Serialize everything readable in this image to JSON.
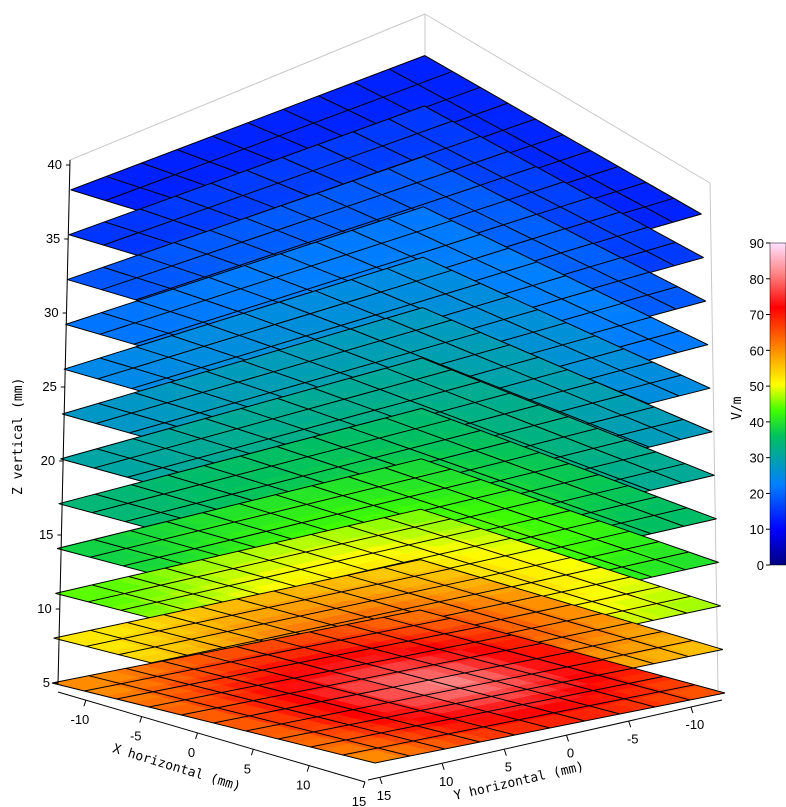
{
  "chart_data": {
    "type": "surface-slices-3d",
    "z_axis": {
      "label": "Z vertical (mm)",
      "range": [
        5,
        40
      ],
      "ticks": [
        5,
        10,
        15,
        20,
        25,
        30,
        35,
        40
      ]
    },
    "x_axis": {
      "label": "X horizontal (mm)",
      "ticks": [
        -10,
        -5,
        0,
        5,
        10,
        15
      ]
    },
    "y_axis": {
      "label": "Y horizontal (mm)",
      "ticks": [
        15,
        10,
        5,
        0,
        -5,
        -10
      ]
    },
    "colorbar": {
      "label": "V/m",
      "range": [
        0,
        90
      ],
      "ticks": [
        0,
        10,
        20,
        30,
        40,
        50,
        60,
        70,
        80,
        90
      ]
    },
    "slices": [
      {
        "z": 5,
        "center_value": 82,
        "edge_value": 60
      },
      {
        "z": 8,
        "center_value": 68,
        "edge_value": 52
      },
      {
        "z": 11,
        "center_value": 56,
        "edge_value": 44
      },
      {
        "z": 14,
        "center_value": 46,
        "edge_value": 38
      },
      {
        "z": 17,
        "center_value": 40,
        "edge_value": 34
      },
      {
        "z": 20,
        "center_value": 35,
        "edge_value": 30
      },
      {
        "z": 23,
        "center_value": 31,
        "edge_value": 27
      },
      {
        "z": 26,
        "center_value": 27,
        "edge_value": 24
      },
      {
        "z": 29,
        "center_value": 23,
        "edge_value": 21
      },
      {
        "z": 32,
        "center_value": 20,
        "edge_value": 18
      },
      {
        "z": 35,
        "center_value": 17,
        "edge_value": 15
      },
      {
        "z": 38,
        "center_value": 14,
        "edge_value": 13
      }
    ],
    "colors": {
      "background": "#ffffff",
      "grid": "#000000",
      "box": "#c8c8c8"
    }
  }
}
